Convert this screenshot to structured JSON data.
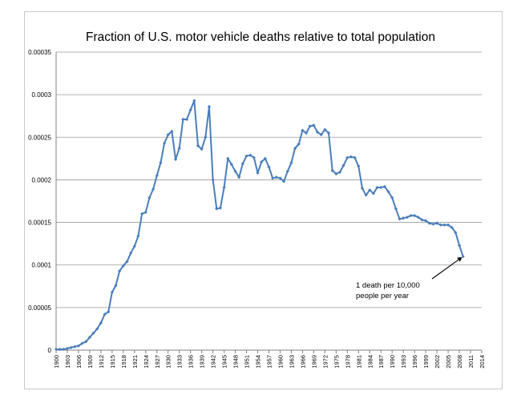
{
  "chart_data": {
    "type": "line",
    "title": "Fraction of U.S. motor vehicle deaths relative to total population",
    "xlabel": "",
    "ylabel": "",
    "xlim": [
      1900,
      2014
    ],
    "ylim": [
      0,
      0.00035
    ],
    "y_ticks": [
      "0",
      "0.00005",
      "0.0001",
      "0.00015",
      "0.0002",
      "0.00025",
      "0.0003",
      "0.00035"
    ],
    "x_ticks": [
      "1900",
      "1903",
      "1906",
      "1909",
      "1912",
      "1915",
      "1918",
      "1921",
      "1924",
      "1927",
      "1930",
      "1933",
      "1936",
      "1939",
      "1942",
      "1945",
      "1948",
      "1951",
      "1954",
      "1957",
      "1960",
      "1963",
      "1966",
      "1969",
      "1972",
      "1975",
      "1978",
      "1981",
      "1984",
      "1987",
      "1990",
      "1993",
      "1996",
      "1999",
      "2002",
      "2005",
      "2008",
      "2011",
      "2014"
    ],
    "grid": "horizontal",
    "legend": "none",
    "series_color": "#4a7ebb",
    "series": [
      {
        "name": "",
        "x": [
          1900,
          1901,
          1902,
          1903,
          1904,
          1905,
          1906,
          1907,
          1908,
          1909,
          1910,
          1911,
          1912,
          1913,
          1914,
          1915,
          1916,
          1917,
          1918,
          1919,
          1920,
          1921,
          1922,
          1923,
          1924,
          1925,
          1926,
          1927,
          1928,
          1929,
          1930,
          1931,
          1932,
          1933,
          1934,
          1935,
          1936,
          1937,
          1938,
          1939,
          1940,
          1941,
          1942,
          1943,
          1944,
          1945,
          1946,
          1947,
          1948,
          1949,
          1950,
          1951,
          1952,
          1953,
          1954,
          1955,
          1956,
          1957,
          1958,
          1959,
          1960,
          1961,
          1962,
          1963,
          1964,
          1965,
          1966,
          1967,
          1968,
          1969,
          1970,
          1971,
          1972,
          1973,
          1974,
          1975,
          1976,
          1977,
          1978,
          1979,
          1980,
          1981,
          1982,
          1983,
          1984,
          1985,
          1986,
          1987,
          1988,
          1989,
          1990,
          1991,
          1992,
          1993,
          1994,
          1995,
          1996,
          1997,
          1998,
          1999,
          2000,
          2001,
          2002,
          2003,
          2004,
          2005,
          2006,
          2007,
          2008,
          2009
        ],
        "values": [
          1e-06,
          1e-06,
          1e-06,
          2e-06,
          3e-06,
          4e-06,
          5e-06,
          8e-06,
          1e-05,
          1.5e-05,
          2e-05,
          2.5e-05,
          3.2e-05,
          4.2e-05,
          4.5e-05,
          6.8e-05,
          7.6e-05,
          9.3e-05,
          9.9e-05,
          0.000104,
          0.000114,
          0.000122,
          0.000134,
          0.00016,
          0.000162,
          0.000179,
          0.000189,
          0.000205,
          0.00022,
          0.000243,
          0.000253,
          0.000257,
          0.000224,
          0.000237,
          0.000271,
          0.000271,
          0.000282,
          0.000293,
          0.00024,
          0.000236,
          0.00025,
          0.000286,
          0.0002,
          0.000166,
          0.000167,
          0.000191,
          0.000225,
          0.000218,
          0.00021,
          0.000203,
          0.000219,
          0.000228,
          0.000229,
          0.000226,
          0.000208,
          0.000221,
          0.000225,
          0.000215,
          0.000202,
          0.000203,
          0.000202,
          0.000198,
          0.00021,
          0.00022,
          0.000237,
          0.000242,
          0.000258,
          0.000255,
          0.000263,
          0.000264,
          0.000256,
          0.000253,
          0.000259,
          0.000255,
          0.000211,
          0.000207,
          0.000209,
          0.000217,
          0.000226,
          0.000227,
          0.000226,
          0.000216,
          0.00019,
          0.000182,
          0.000188,
          0.000184,
          0.000191,
          0.000191,
          0.000192,
          0.000186,
          0.000179,
          0.000166,
          0.000154,
          0.000155,
          0.000156,
          0.000158,
          0.000158,
          0.000156,
          0.000153,
          0.000152,
          0.000149,
          0.000148,
          0.000149,
          0.000147,
          0.000147,
          0.000147,
          0.000144,
          0.000138,
          0.000123,
          0.00011
        ]
      }
    ],
    "annotation": {
      "line1": "1 death per 10,000",
      "line2": "people per year",
      "arrow_to_x": 2009,
      "arrow_to_y": 0.00011
    }
  }
}
